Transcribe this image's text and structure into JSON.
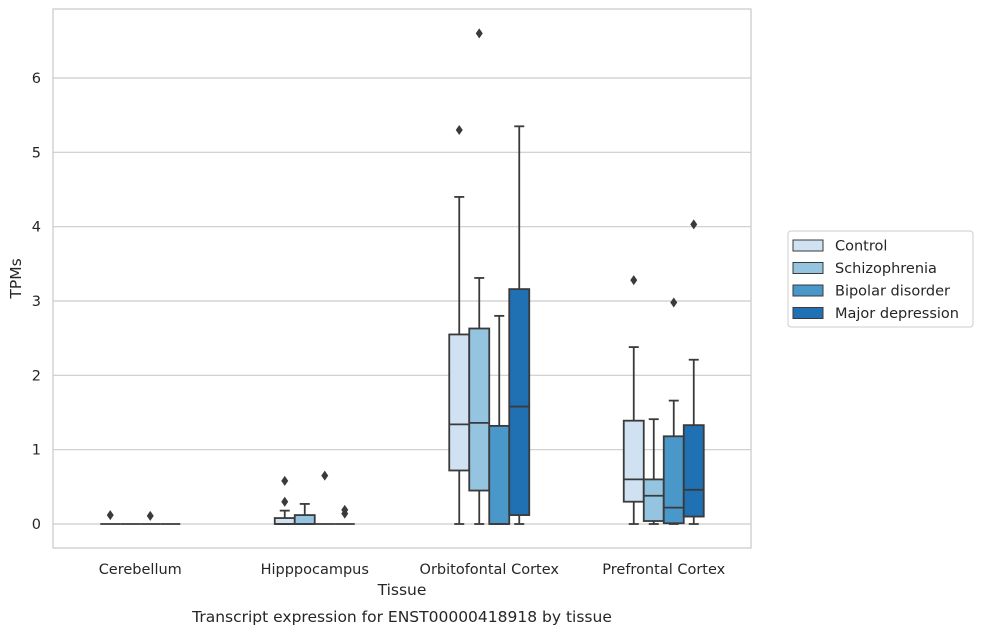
{
  "chart_data": {
    "type": "box",
    "title": "",
    "caption": "Transcript expression for ENST00000418918 by tissue",
    "xlabel": "Tissue",
    "ylabel": "TPMs",
    "ylim": [
      -0.32,
      6.92
    ],
    "yticks": [
      0,
      1,
      2,
      3,
      4,
      5,
      6
    ],
    "grid": "horizontal",
    "legend_position": "right",
    "categories": [
      "Cerebellum",
      "Hipppocampus",
      "Orbitofontal Cortex",
      "Prefrontal Cortex"
    ],
    "series": [
      {
        "name": "Control",
        "color": "#d0e1f2",
        "boxes": [
          {
            "whislo": 0,
            "q1": 0,
            "med": 0,
            "q3": 0,
            "whishi": 0,
            "fliers": [
              0.12
            ]
          },
          {
            "whislo": 0,
            "q1": 0,
            "med": 0,
            "q3": 0.08,
            "whishi": 0.18,
            "fliers": [
              0.3,
              0.58
            ]
          },
          {
            "whislo": 0,
            "q1": 0.72,
            "med": 1.34,
            "q3": 2.55,
            "whishi": 4.4,
            "fliers": [
              5.3
            ]
          },
          {
            "whislo": 0,
            "q1": 0.3,
            "med": 0.6,
            "q3": 1.39,
            "whishi": 2.38,
            "fliers": [
              3.28
            ]
          }
        ]
      },
      {
        "name": "Schizophrenia",
        "color": "#94c4df",
        "boxes": [
          {
            "whislo": 0,
            "q1": 0,
            "med": 0,
            "q3": 0,
            "whishi": 0,
            "fliers": []
          },
          {
            "whislo": 0,
            "q1": 0,
            "med": 0,
            "q3": 0.12,
            "whishi": 0.27,
            "fliers": []
          },
          {
            "whislo": 0,
            "q1": 0.45,
            "med": 1.36,
            "q3": 2.63,
            "whishi": 3.31,
            "fliers": [
              6.6
            ]
          },
          {
            "whislo": 0,
            "q1": 0.04,
            "med": 0.38,
            "q3": 0.6,
            "whishi": 1.41,
            "fliers": []
          }
        ]
      },
      {
        "name": "Bipolar disorder",
        "color": "#4a98c9",
        "boxes": [
          {
            "whislo": 0,
            "q1": 0,
            "med": 0,
            "q3": 0,
            "whishi": 0,
            "fliers": [
              0.11
            ]
          },
          {
            "whislo": 0,
            "q1": 0,
            "med": 0,
            "q3": 0,
            "whishi": 0,
            "fliers": [
              0.65
            ]
          },
          {
            "whislo": 0,
            "q1": 0,
            "med": 0,
            "q3": 1.32,
            "whishi": 2.8,
            "fliers": []
          },
          {
            "whislo": 0,
            "q1": 0.01,
            "med": 0.22,
            "q3": 1.18,
            "whishi": 1.66,
            "fliers": [
              2.98
            ]
          }
        ]
      },
      {
        "name": "Major depression",
        "color": "#2070b4",
        "boxes": [
          {
            "whislo": 0,
            "q1": 0,
            "med": 0,
            "q3": 0,
            "whishi": 0,
            "fliers": []
          },
          {
            "whislo": 0,
            "q1": 0,
            "med": 0,
            "q3": 0,
            "whishi": 0,
            "fliers": [
              0.14,
              0.19
            ]
          },
          {
            "whislo": 0,
            "q1": 0.12,
            "med": 1.58,
            "q3": 3.16,
            "whishi": 5.35,
            "fliers": []
          },
          {
            "whislo": 0,
            "q1": 0.1,
            "med": 0.46,
            "q3": 1.33,
            "whishi": 2.21,
            "fliers": [
              4.03
            ]
          }
        ]
      }
    ]
  }
}
